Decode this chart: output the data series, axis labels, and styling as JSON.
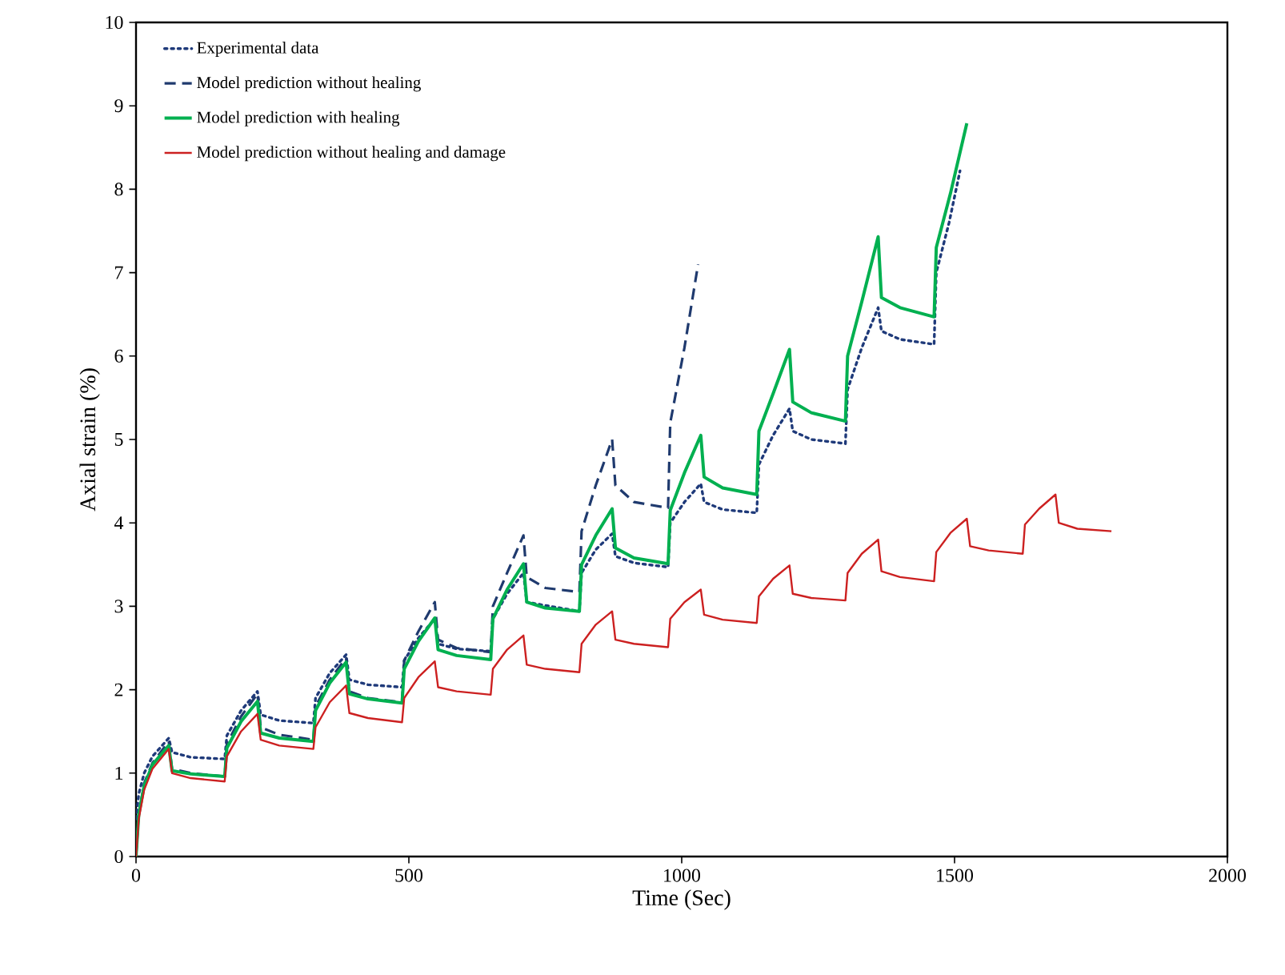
{
  "chart_data": {
    "type": "line",
    "xlabel": "Time (Sec)",
    "ylabel": "Axial strain (%)",
    "xlim": [
      0,
      2000
    ],
    "ylim": [
      0,
      10
    ],
    "xticks": [
      0,
      500,
      1000,
      1500,
      2000
    ],
    "yticks": [
      0,
      1,
      2,
      3,
      4,
      5,
      6,
      7,
      8,
      9,
      10
    ],
    "legend": "top left",
    "marker": "none",
    "grid": false,
    "series": [
      {
        "name": "Experimental data",
        "color": "#1f3a7a",
        "line_style": "dotted",
        "x": [
          0,
          5,
          15,
          30,
          60,
          66,
          100,
          162.5,
          166.5,
          192.5,
          222.5,
          228.5,
          262.5,
          325,
          329,
          355,
          385,
          391,
          425,
          487.5,
          491.5,
          517.5,
          547.5,
          553.5,
          587.5,
          650,
          654,
          680,
          710,
          716,
          750,
          812.5,
          816.5,
          842.5,
          872.5,
          878.5,
          912.5,
          975,
          979,
          1005,
          1035,
          1041,
          1075,
          1137.5,
          1141.5,
          1167.5,
          1197.5,
          1203.5,
          1237.5,
          1300,
          1304,
          1330,
          1360,
          1366,
          1400,
          1462.5,
          1466.5,
          1490,
          1510
        ],
        "values": [
          0.45,
          0.75,
          1.0,
          1.2,
          1.42,
          1.25,
          1.19,
          1.17,
          1.45,
          1.75,
          1.98,
          1.7,
          1.63,
          1.6,
          1.9,
          2.2,
          2.42,
          2.12,
          2.06,
          2.03,
          2.35,
          2.62,
          2.85,
          2.55,
          2.49,
          2.46,
          2.85,
          3.15,
          3.4,
          3.05,
          3.01,
          2.94,
          3.4,
          3.68,
          3.87,
          3.6,
          3.52,
          3.47,
          4.0,
          4.25,
          4.47,
          4.25,
          4.16,
          4.12,
          4.7,
          5.05,
          5.37,
          5.1,
          5.0,
          4.95,
          5.6,
          6.1,
          6.58,
          6.3,
          6.2,
          6.14,
          7.0,
          7.6,
          8.22
        ]
      },
      {
        "name": "Model prediction without healing",
        "color": "#1f3a6e",
        "line_style": "dashed",
        "x": [
          0,
          5,
          15,
          30,
          60,
          66,
          100,
          162.5,
          166.5,
          192.5,
          222.5,
          228.5,
          262.5,
          325,
          329,
          355,
          385,
          391,
          425,
          487.5,
          491.5,
          517.5,
          547.5,
          553.5,
          587.5,
          650,
          654,
          680,
          710,
          716,
          750,
          812.5,
          816.5,
          842.5,
          872.5,
          878.5,
          912.5,
          975,
          979,
          1005,
          1030
        ],
        "values": [
          0,
          0.5,
          0.88,
          1.12,
          1.38,
          1.05,
          1.0,
          0.96,
          1.35,
          1.68,
          1.95,
          1.55,
          1.46,
          1.4,
          1.8,
          2.12,
          2.38,
          1.98,
          1.9,
          1.85,
          2.35,
          2.7,
          3.05,
          2.6,
          2.5,
          2.45,
          3.0,
          3.4,
          3.85,
          3.35,
          3.22,
          3.17,
          3.9,
          4.45,
          5.0,
          4.45,
          4.25,
          4.18,
          5.2,
          6.1,
          7.1
        ]
      },
      {
        "name": "Model prediction with healing",
        "color": "#00b050",
        "line_style": "solid",
        "x": [
          0,
          5,
          15,
          30,
          60,
          66,
          100,
          162.5,
          166.5,
          192.5,
          222.5,
          228.5,
          262.5,
          325,
          329,
          355,
          385,
          391,
          425,
          487.5,
          491.5,
          517.5,
          547.5,
          553.5,
          587.5,
          650,
          654,
          680,
          710,
          716,
          750,
          812.5,
          816.5,
          842.5,
          872.5,
          878.5,
          912.5,
          975,
          979,
          1005,
          1035,
          1041,
          1075,
          1137.5,
          1141.5,
          1167.5,
          1197.5,
          1203.5,
          1237.5,
          1300,
          1304,
          1330,
          1360,
          1366,
          1400,
          1462.5,
          1466.5,
          1492.5,
          1522.5
        ],
        "values": [
          0,
          0.5,
          0.85,
          1.1,
          1.33,
          1.03,
          0.99,
          0.96,
          1.3,
          1.62,
          1.86,
          1.48,
          1.42,
          1.38,
          1.75,
          2.08,
          2.33,
          1.95,
          1.89,
          1.84,
          2.25,
          2.58,
          2.86,
          2.48,
          2.41,
          2.36,
          2.85,
          3.2,
          3.51,
          3.05,
          2.98,
          2.94,
          3.5,
          3.85,
          4.17,
          3.7,
          3.58,
          3.51,
          4.15,
          4.6,
          5.05,
          4.55,
          4.42,
          4.34,
          5.1,
          5.55,
          6.08,
          5.45,
          5.32,
          5.22,
          6.0,
          6.65,
          7.43,
          6.7,
          6.58,
          6.47,
          7.3,
          7.95,
          8.79
        ]
      },
      {
        "name": "Model prediction without healing and damage",
        "color": "#cc2020",
        "line_style": "solid",
        "x": [
          0,
          5,
          15,
          30,
          60,
          66,
          100,
          162.5,
          166.5,
          192.5,
          222.5,
          228.5,
          262.5,
          325,
          329,
          355,
          385,
          391,
          425,
          487.5,
          491.5,
          517.5,
          547.5,
          553.5,
          587.5,
          650,
          654,
          680,
          710,
          716,
          750,
          812.5,
          816.5,
          842.5,
          872.5,
          878.5,
          912.5,
          975,
          979,
          1005,
          1035,
          1041,
          1075,
          1137.5,
          1141.5,
          1167.5,
          1197.5,
          1203.5,
          1237.5,
          1300,
          1304,
          1330,
          1360,
          1366,
          1400,
          1462.5,
          1466.5,
          1492.5,
          1522.5,
          1528.5,
          1562.5,
          1625,
          1629,
          1655,
          1685,
          1691,
          1725,
          1787.5
        ],
        "values": [
          0,
          0.45,
          0.8,
          1.05,
          1.29,
          1.0,
          0.94,
          0.9,
          1.2,
          1.5,
          1.71,
          1.4,
          1.33,
          1.29,
          1.55,
          1.85,
          2.05,
          1.72,
          1.66,
          1.61,
          1.9,
          2.15,
          2.34,
          2.03,
          1.98,
          1.94,
          2.25,
          2.48,
          2.65,
          2.3,
          2.25,
          2.21,
          2.55,
          2.78,
          2.94,
          2.6,
          2.55,
          2.51,
          2.85,
          3.05,
          3.2,
          2.9,
          2.84,
          2.8,
          3.12,
          3.33,
          3.49,
          3.15,
          3.1,
          3.07,
          3.4,
          3.63,
          3.8,
          3.42,
          3.35,
          3.3,
          3.65,
          3.88,
          4.05,
          3.72,
          3.67,
          3.63,
          3.98,
          4.17,
          4.34,
          4.0,
          3.93,
          3.9
        ]
      }
    ]
  }
}
